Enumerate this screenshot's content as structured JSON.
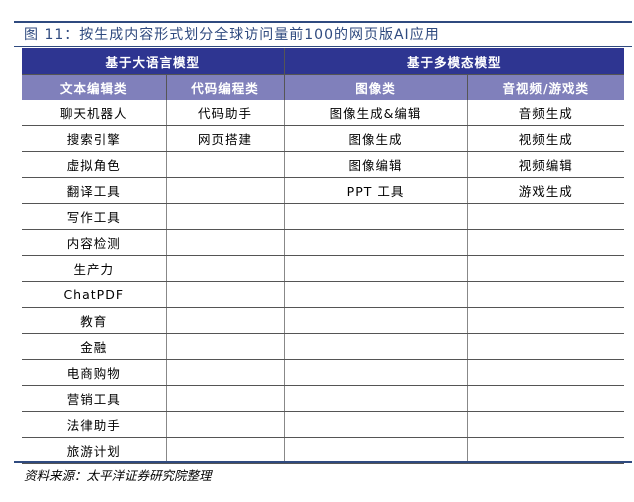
{
  "title": "图 11：按生成内容形式划分全球访问量前100的网页版AI应用",
  "groups": [
    "基于大语言模型",
    "基于多模态模型"
  ],
  "columns": [
    "文本编辑类",
    "代码编程类",
    "图像类",
    "音视频/游戏类"
  ],
  "rows": [
    [
      "聊天机器人",
      "代码助手",
      "图像生成&编辑",
      "音频生成"
    ],
    [
      "搜索引擎",
      "网页搭建",
      "图像生成",
      "视频生成"
    ],
    [
      "虚拟角色",
      "",
      "图像编辑",
      "视频编辑"
    ],
    [
      "翻译工具",
      "",
      "PPT 工具",
      "游戏生成"
    ],
    [
      "写作工具",
      "",
      "",
      ""
    ],
    [
      "内容检测",
      "",
      "",
      ""
    ],
    [
      "生产力",
      "",
      "",
      ""
    ],
    [
      "ChatPDF",
      "",
      "",
      ""
    ],
    [
      "教育",
      "",
      "",
      ""
    ],
    [
      "金融",
      "",
      "",
      ""
    ],
    [
      "电商购物",
      "",
      "",
      ""
    ],
    [
      "营销工具",
      "",
      "",
      ""
    ],
    [
      "法律助手",
      "",
      "",
      ""
    ],
    [
      "旅游计划",
      "",
      "",
      ""
    ]
  ],
  "source": "资料来源：太平洋证券研究院整理",
  "colors": {
    "title": "#2f4a7f",
    "group_header": "#2e3591",
    "column_header": "#8080bb"
  }
}
